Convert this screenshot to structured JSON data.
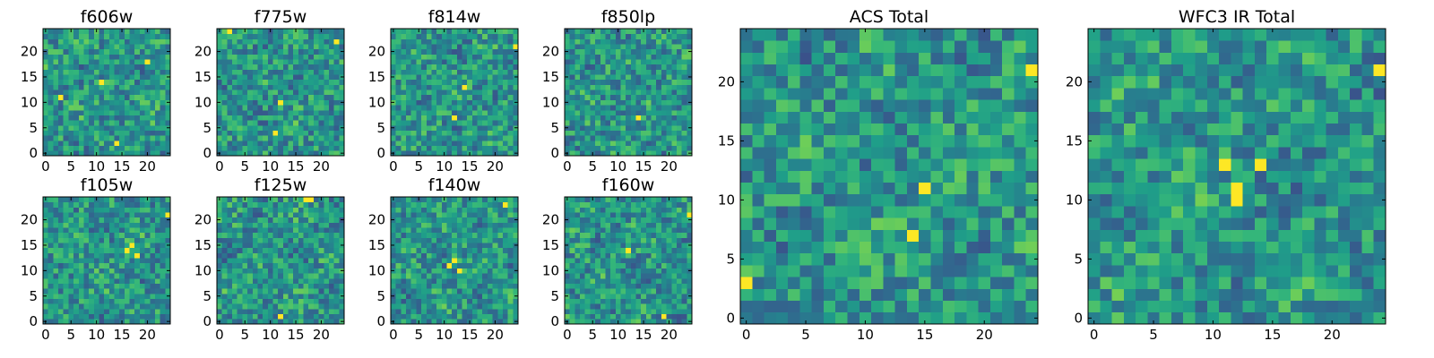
{
  "figure": {
    "colormap": "viridis",
    "colormap_stops": [
      "#440154",
      "#482878",
      "#3e4989",
      "#31688e",
      "#26828e",
      "#1f9e89",
      "#35b779",
      "#6ece58",
      "#b5de2b",
      "#fde725"
    ]
  },
  "chart_data": [
    {
      "type": "heatmap",
      "title": "f606w",
      "grid_size": 25,
      "x_ticks": [
        0,
        5,
        10,
        15,
        20
      ],
      "y_ticks": [
        0,
        5,
        10,
        15,
        20
      ],
      "xlim": [
        -0.5,
        24.5
      ],
      "ylim": [
        -0.5,
        24.5
      ],
      "bright_pixels": [
        [
          14,
          2
        ],
        [
          11,
          14
        ],
        [
          20,
          18
        ],
        [
          3,
          11
        ]
      ],
      "seed": 11
    },
    {
      "type": "heatmap",
      "title": "f775w",
      "grid_size": 25,
      "x_ticks": [
        0,
        5,
        10,
        15,
        20
      ],
      "y_ticks": [
        0,
        5,
        10,
        15,
        20
      ],
      "xlim": [
        -0.5,
        24.5
      ],
      "ylim": [
        -0.5,
        24.5
      ],
      "bright_pixels": [
        [
          12,
          10
        ],
        [
          2,
          24
        ],
        [
          23,
          22
        ],
        [
          11,
          4
        ]
      ],
      "seed": 23
    },
    {
      "type": "heatmap",
      "title": "f814w",
      "grid_size": 25,
      "x_ticks": [
        0,
        5,
        10,
        15,
        20
      ],
      "y_ticks": [
        0,
        5,
        10,
        15,
        20
      ],
      "xlim": [
        -0.5,
        24.5
      ],
      "ylim": [
        -0.5,
        24.5
      ],
      "bright_pixels": [
        [
          14,
          13
        ],
        [
          24,
          21
        ],
        [
          12,
          7
        ]
      ],
      "seed": 37
    },
    {
      "type": "heatmap",
      "title": "f850lp",
      "grid_size": 25,
      "x_ticks": [
        0,
        5,
        10,
        15,
        20
      ],
      "y_ticks": [
        0,
        5,
        10,
        15,
        20
      ],
      "xlim": [
        -0.5,
        24.5
      ],
      "ylim": [
        -0.5,
        24.5
      ],
      "bright_pixels": [
        [
          14,
          7
        ]
      ],
      "seed": 41
    },
    {
      "type": "heatmap",
      "title": "f105w",
      "grid_size": 25,
      "x_ticks": [
        0,
        5,
        10,
        15,
        20
      ],
      "y_ticks": [
        0,
        5,
        10,
        15,
        20
      ],
      "xlim": [
        -0.5,
        24.5
      ],
      "ylim": [
        -0.5,
        24.5
      ],
      "bright_pixels": [
        [
          17,
          15
        ],
        [
          18,
          13
        ],
        [
          16,
          14
        ],
        [
          24,
          21
        ]
      ],
      "seed": 53
    },
    {
      "type": "heatmap",
      "title": "f125w",
      "grid_size": 25,
      "x_ticks": [
        0,
        5,
        10,
        15,
        20
      ],
      "y_ticks": [
        0,
        5,
        10,
        15,
        20
      ],
      "xlim": [
        -0.5,
        24.5
      ],
      "ylim": [
        -0.5,
        24.5
      ],
      "bright_pixels": [
        [
          17,
          24
        ],
        [
          18,
          24
        ],
        [
          12,
          1
        ]
      ],
      "seed": 67
    },
    {
      "type": "heatmap",
      "title": "f140w",
      "grid_size": 25,
      "x_ticks": [
        0,
        5,
        10,
        15,
        20
      ],
      "y_ticks": [
        0,
        5,
        10,
        15,
        20
      ],
      "xlim": [
        -0.5,
        24.5
      ],
      "ylim": [
        -0.5,
        24.5
      ],
      "bright_pixels": [
        [
          11,
          11
        ],
        [
          12,
          12
        ],
        [
          22,
          23
        ],
        [
          13,
          10
        ]
      ],
      "seed": 79
    },
    {
      "type": "heatmap",
      "title": "f160w",
      "grid_size": 25,
      "x_ticks": [
        0,
        5,
        10,
        15,
        20
      ],
      "y_ticks": [
        0,
        5,
        10,
        15,
        20
      ],
      "xlim": [
        -0.5,
        24.5
      ],
      "ylim": [
        -0.5,
        24.5
      ],
      "bright_pixels": [
        [
          24,
          21
        ],
        [
          12,
          14
        ],
        [
          19,
          1
        ]
      ],
      "seed": 83
    },
    {
      "type": "heatmap",
      "title": "ACS Total",
      "grid_size": 25,
      "x_ticks": [
        0,
        5,
        10,
        15,
        20
      ],
      "y_ticks": [
        0,
        5,
        10,
        15,
        20
      ],
      "xlim": [
        -0.5,
        24.5
      ],
      "ylim": [
        -0.5,
        24.5
      ],
      "bright_pixels": [
        [
          15,
          11
        ],
        [
          14,
          7
        ],
        [
          24,
          21
        ],
        [
          0,
          3
        ]
      ],
      "seed": 97
    },
    {
      "type": "heatmap",
      "title": "WFC3 IR Total",
      "grid_size": 25,
      "x_ticks": [
        0,
        5,
        10,
        15,
        20
      ],
      "y_ticks": [
        0,
        5,
        10,
        15,
        20
      ],
      "xlim": [
        -0.5,
        24.5
      ],
      "ylim": [
        -0.5,
        24.5
      ],
      "bright_pixels": [
        [
          12,
          10
        ],
        [
          12,
          11
        ],
        [
          24,
          21
        ],
        [
          11,
          13
        ],
        [
          14,
          13
        ]
      ],
      "seed": 101
    }
  ]
}
